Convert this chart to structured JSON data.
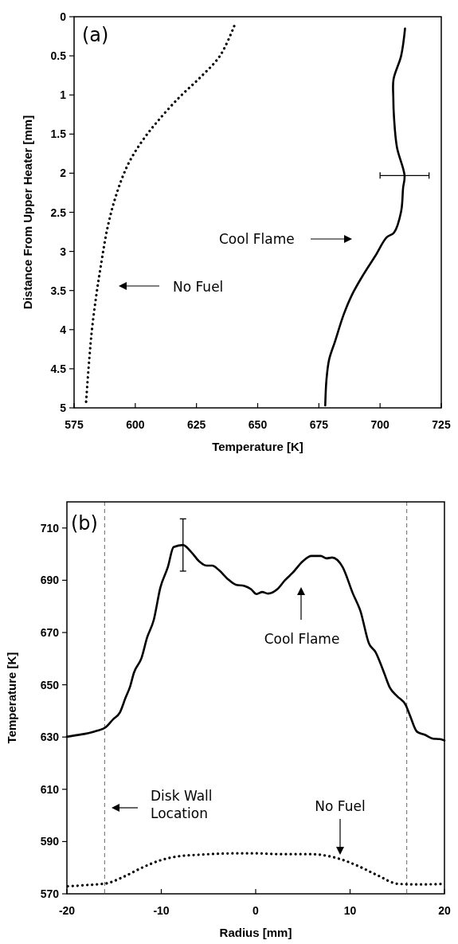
{
  "chart_data": [
    {
      "type": "line",
      "xlabel": "Temperature [K]",
      "ylabel": "Distance From Upper Heater [mm]",
      "xlim": [
        575,
        725
      ],
      "xticks": [
        575,
        600,
        625,
        650,
        675,
        700,
        725
      ],
      "ylim": [
        5,
        0
      ],
      "yticks": [
        0,
        0.5,
        1,
        1.5,
        2,
        2.5,
        3,
        3.5,
        4,
        4.5,
        5
      ],
      "grid": false,
      "annotations": [
        "(a)",
        "No Fuel",
        "Cool Flame"
      ],
      "series": [
        {
          "color": "#000000",
          "line_style": "dotted",
          "x": [
            640.4,
            634.6,
            626.4,
            618,
            609.3,
            602.8,
            597,
            592.3,
            588.7,
            585.8,
            584,
            582.3,
            581.1,
            579.9
          ],
          "values": [
            0.12,
            0.5,
            0.78,
            1.03,
            1.33,
            1.59,
            1.89,
            2.27,
            2.69,
            3.21,
            3.58,
            4.0,
            4.42,
            4.93
          ]
        },
        {
          "color": "#000000",
          "line_style": "solid",
          "x": [
            710.2,
            708.6,
            705.5,
            705.4,
            705.7,
            706.9,
            710,
            709.4,
            708.6,
            705.7,
            702.7,
            698,
            693.3,
            688.6,
            685.1,
            681.6,
            679.2,
            678.1,
            677.6
          ],
          "values": [
            0.15,
            0.5,
            0.8,
            1.03,
            1.29,
            1.67,
            2.03,
            2.19,
            2.49,
            2.76,
            2.82,
            3.06,
            3.29,
            3.55,
            3.81,
            4.15,
            4.38,
            4.64,
            4.97
          ],
          "xerrors": [
            null,
            null,
            null,
            null,
            null,
            null,
            10,
            null,
            null,
            null,
            null,
            null,
            null,
            null,
            null,
            null,
            null,
            null,
            null
          ]
        }
      ]
    },
    {
      "type": "line",
      "xlabel": "Radius [mm]",
      "ylabel": "Temperature [K]",
      "xlim": [
        -20,
        20
      ],
      "xticks": [
        -20,
        -10,
        0,
        10,
        20
      ],
      "ylim": [
        570,
        720
      ],
      "yticks": [
        570,
        590,
        610,
        630,
        650,
        670,
        690,
        710
      ],
      "grid": false,
      "annotations": [
        "(b)",
        "Disk Wall Location",
        "Cool Flame",
        "No Fuel"
      ],
      "ref_lines": [
        {
          "axis": "x",
          "value": -16,
          "color": "#808080",
          "line_style": "dashed"
        },
        {
          "axis": "x",
          "value": 16,
          "color": "#808080",
          "line_style": "dashed"
        }
      ],
      "series": [
        {
          "color": "#000000",
          "line_style": "solid",
          "x": [
            -20,
            -19,
            -17.7,
            -16.8,
            -15.9,
            -15.1,
            -14.4,
            -13.8,
            -13.3,
            -12.9,
            -12.1,
            -11.5,
            -10.8,
            -10.1,
            -9.3,
            -8.7,
            -7.7,
            -6.8,
            -6.0,
            -5.2,
            -4.6,
            -3.9,
            -3.0,
            -2.1,
            -1.2,
            -0.5,
            0.1,
            0.7,
            1.3,
            2.3,
            3.1,
            3.9,
            5.0,
            5.9,
            6.9,
            7.5,
            8.1,
            9.2,
            10.3,
            11.1,
            12.0,
            12.7,
            13.6,
            14.2,
            15.0,
            15.9,
            16.3,
            17.1,
            17.9,
            18.8,
            19.5,
            20
          ],
          "values": [
            630.1,
            630.7,
            631.5,
            632.4,
            633.7,
            636.8,
            639.3,
            644.9,
            649.4,
            654.6,
            660.2,
            668.1,
            674.8,
            687.2,
            695.1,
            702.7,
            703.5,
            700.7,
            697.3,
            695.6,
            695.6,
            693.9,
            690.6,
            688.3,
            687.8,
            686.6,
            684.7,
            685.5,
            684.9,
            686.6,
            690,
            692.8,
            697.3,
            699.3,
            699.3,
            698.4,
            698.7,
            695.1,
            684.9,
            678.2,
            665.8,
            662.5,
            654.6,
            649,
            645.6,
            642.2,
            638.7,
            632,
            630.9,
            629.4,
            629.2,
            628.7
          ],
          "errors": [
            null,
            null,
            null,
            null,
            null,
            null,
            null,
            null,
            null,
            null,
            null,
            null,
            null,
            null,
            null,
            null,
            10,
            null,
            null,
            null,
            null,
            null,
            null,
            null,
            null,
            null,
            null,
            null,
            null,
            null,
            null,
            null,
            null,
            null,
            null,
            null,
            null,
            null,
            null,
            null,
            null,
            null,
            null,
            null,
            null,
            null,
            null,
            null,
            null,
            null,
            null,
            null
          ]
        },
        {
          "color": "#000000",
          "line_style": "dotted",
          "x": [
            -19.9,
            -17.7,
            -15.8,
            -14,
            -12.1,
            -10.2,
            -8.3,
            -5.8,
            -2.1,
            0,
            2.6,
            5.7,
            7.9,
            9.2,
            11.0,
            12.9,
            15.1,
            17.3,
            20
          ],
          "values": [
            572.9,
            573.4,
            574.0,
            576.5,
            579.9,
            582.7,
            584.3,
            585.0,
            585.5,
            585.5,
            585.2,
            585.2,
            584.3,
            583,
            580.4,
            577.1,
            573.8,
            573.6,
            573.8
          ]
        }
      ]
    }
  ]
}
